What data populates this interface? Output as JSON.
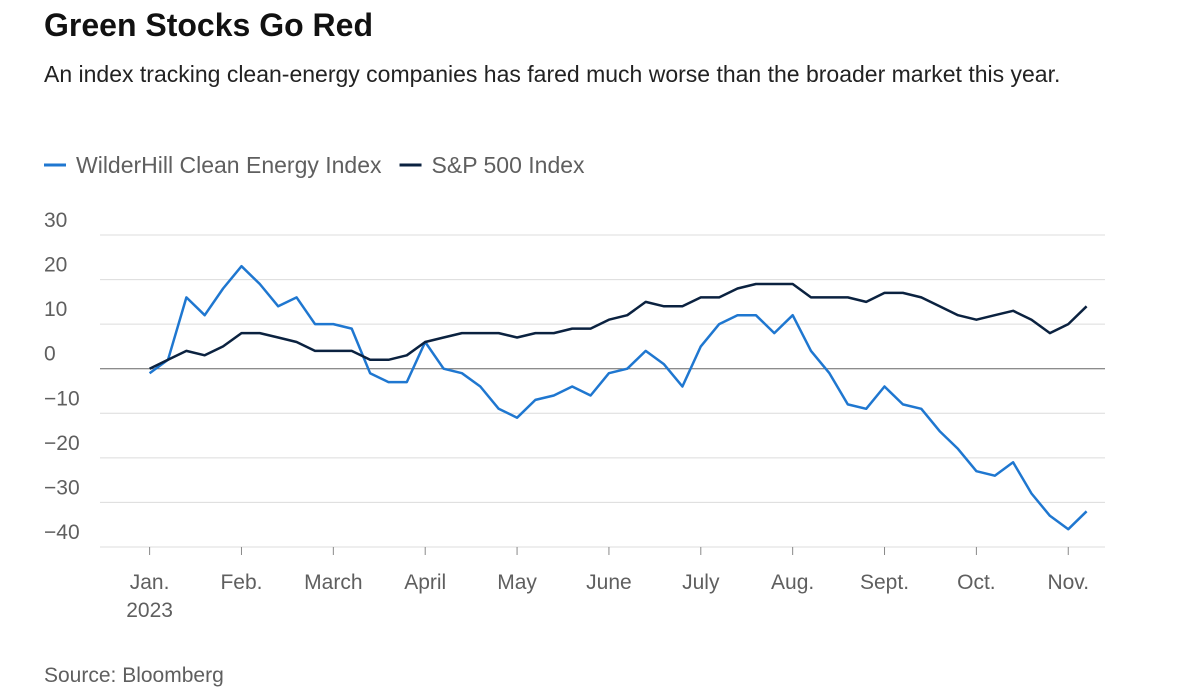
{
  "chart_data": {
    "type": "line",
    "title": "Green Stocks Go Red",
    "subtitle": "An index tracking clean-energy companies has fared much worse than the broader market this year.",
    "source": "Source: Bloomberg",
    "x": [
      0,
      0.2,
      0.4,
      0.6,
      0.8,
      1,
      1.2,
      1.4,
      1.6,
      1.8,
      2,
      2.2,
      2.4,
      2.6,
      2.8,
      3,
      3.2,
      3.4,
      3.6,
      3.8,
      4,
      4.2,
      4.4,
      4.6,
      4.8,
      5,
      5.2,
      5.4,
      5.6,
      5.8,
      6,
      6.2,
      6.4,
      6.6,
      6.8,
      7,
      7.2,
      7.4,
      7.6,
      7.8,
      8,
      8.2,
      8.4,
      8.6,
      8.8,
      9,
      9.2,
      9.4,
      9.6,
      9.8,
      10,
      10.2
    ],
    "series": [
      {
        "name": "WilderHill Clean Energy Index",
        "color": "#1f77d0",
        "values": [
          -1,
          2,
          16,
          12,
          18,
          23,
          19,
          14,
          16,
          10,
          10,
          9,
          -1,
          -3,
          -3,
          6,
          0,
          -1,
          -4,
          -9,
          -11,
          -7,
          -6,
          -4,
          -6,
          -1,
          0,
          4,
          1,
          -4,
          5,
          10,
          12,
          12,
          8,
          12,
          4,
          -1,
          -8,
          -9,
          -4,
          -8,
          -9,
          -14,
          -18,
          -23,
          -24,
          -21,
          -28,
          -33,
          -36,
          -32
        ]
      },
      {
        "name": "S&P 500 Index",
        "color": "#0b2240",
        "values": [
          0,
          2,
          4,
          3,
          5,
          8,
          8,
          7,
          6,
          4,
          4,
          4,
          2,
          2,
          3,
          6,
          7,
          8,
          8,
          8,
          7,
          8,
          8,
          9,
          9,
          11,
          12,
          15,
          14,
          14,
          16,
          16,
          18,
          19,
          19,
          19,
          16,
          16,
          16,
          15,
          17,
          17,
          16,
          14,
          12,
          11,
          12,
          13,
          11,
          8,
          10,
          14
        ]
      }
    ],
    "xlim": [
      -0.54,
      10.4
    ],
    "xticks": [
      {
        "value": 0,
        "label": "Jan.\n2023"
      },
      {
        "value": 1,
        "label": "Feb."
      },
      {
        "value": 2,
        "label": "March"
      },
      {
        "value": 3,
        "label": "April"
      },
      {
        "value": 4,
        "label": "May"
      },
      {
        "value": 5,
        "label": "June"
      },
      {
        "value": 6,
        "label": "July"
      },
      {
        "value": 7,
        "label": "Aug."
      },
      {
        "value": 8,
        "label": "Sept."
      },
      {
        "value": 9,
        "label": "Oct."
      },
      {
        "value": 10,
        "label": "Nov."
      }
    ],
    "ylim": [
      -40,
      30
    ],
    "yticks": [
      {
        "value": -40,
        "label": "−40"
      },
      {
        "value": -30,
        "label": "−30"
      },
      {
        "value": -20,
        "label": "−20"
      },
      {
        "value": -10,
        "label": "−10"
      },
      0,
      10,
      20,
      30
    ],
    "grid": true
  }
}
